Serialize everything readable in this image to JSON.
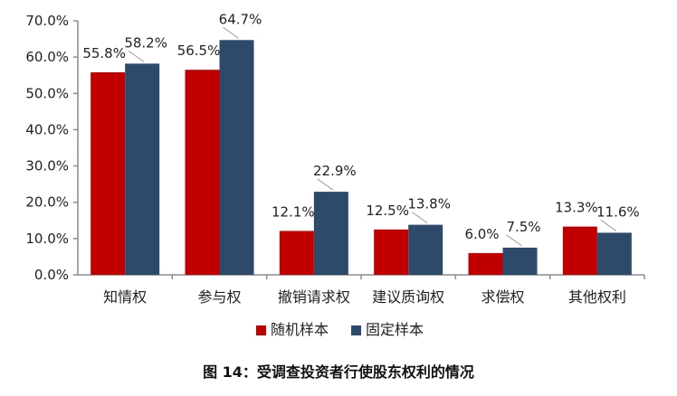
{
  "caption": "图 14：受调查投资者行使股东权利的情况",
  "chart_data": {
    "type": "bar",
    "categories": [
      "知情权",
      "参与权",
      "撤销请求权",
      "建议质询权",
      "求偿权",
      "其他权利"
    ],
    "series": [
      {
        "name": "随机样本",
        "color": "#c00000",
        "values": [
          55.8,
          56.5,
          12.1,
          12.5,
          6.0,
          13.3
        ],
        "labels": [
          "55.8%",
          "56.5%",
          "12.1%",
          "12.5%",
          "6.0%",
          "13.3%"
        ]
      },
      {
        "name": "固定样本",
        "color": "#2e4a6b",
        "values": [
          58.2,
          64.7,
          22.9,
          13.8,
          7.5,
          11.6
        ],
        "labels": [
          "58.2%",
          "64.7%",
          "22.9%",
          "13.8%",
          "7.5%",
          "11.6%"
        ]
      }
    ],
    "ylim": [
      0,
      70
    ],
    "yticks": [
      "0.0%",
      "10.0%",
      "20.0%",
      "30.0%",
      "40.0%",
      "50.0%",
      "60.0%",
      "70.0%"
    ],
    "ytick_values": [
      0,
      10,
      20,
      30,
      40,
      50,
      60,
      70
    ],
    "grid": false,
    "legend_position": "bottom"
  }
}
